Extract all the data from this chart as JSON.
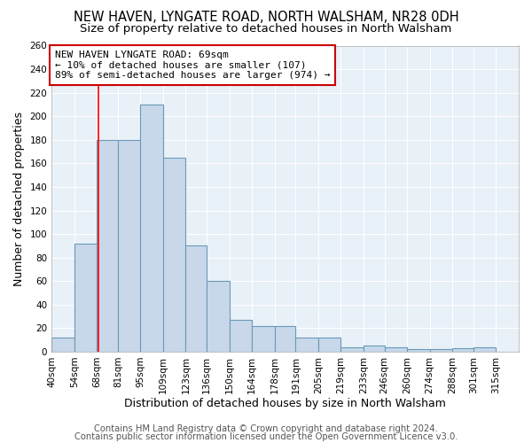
{
  "title": "NEW HAVEN, LYNGATE ROAD, NORTH WALSHAM, NR28 0DH",
  "subtitle": "Size of property relative to detached houses in North Walsham",
  "xlabel": "Distribution of detached houses by size in North Walsham",
  "ylabel": "Number of detached properties",
  "footer1": "Contains HM Land Registry data © Crown copyright and database right 2024.",
  "footer2": "Contains public sector information licensed under the Open Government Licence v3.0.",
  "bin_labels": [
    "40sqm",
    "54sqm",
    "68sqm",
    "81sqm",
    "95sqm",
    "109sqm",
    "123sqm",
    "136sqm",
    "150sqm",
    "164sqm",
    "178sqm",
    "191sqm",
    "205sqm",
    "219sqm",
    "233sqm",
    "246sqm",
    "260sqm",
    "274sqm",
    "288sqm",
    "301sqm",
    "315sqm"
  ],
  "bin_edges": [
    40,
    54,
    68,
    81,
    95,
    109,
    123,
    136,
    150,
    164,
    178,
    191,
    205,
    219,
    233,
    246,
    260,
    274,
    288,
    301,
    315,
    329
  ],
  "bar_values": [
    12,
    92,
    180,
    180,
    210,
    165,
    90,
    60,
    27,
    22,
    22,
    12,
    12,
    4,
    5,
    4,
    2,
    2,
    3,
    4,
    0
  ],
  "bar_color": "#c8d8ea",
  "bar_edge_color": "#6a9ab8",
  "red_line_x": 69,
  "annotation_title": "NEW HAVEN LYNGATE ROAD: 69sqm",
  "annotation_line1": "← 10% of detached houses are smaller (107)",
  "annotation_line2": "89% of semi-detached houses are larger (974) →",
  "annotation_box_color": "#ffffff",
  "annotation_box_edge": "#cc0000",
  "ylim": [
    0,
    260
  ],
  "yticks": [
    0,
    20,
    40,
    60,
    80,
    100,
    120,
    140,
    160,
    180,
    200,
    220,
    240,
    260
  ],
  "background_color": "#ffffff",
  "plot_background": "#e8f0f8",
  "title_fontsize": 10.5,
  "subtitle_fontsize": 9.5,
  "axis_label_fontsize": 9,
  "tick_fontsize": 7.5,
  "footer_fontsize": 7.2
}
